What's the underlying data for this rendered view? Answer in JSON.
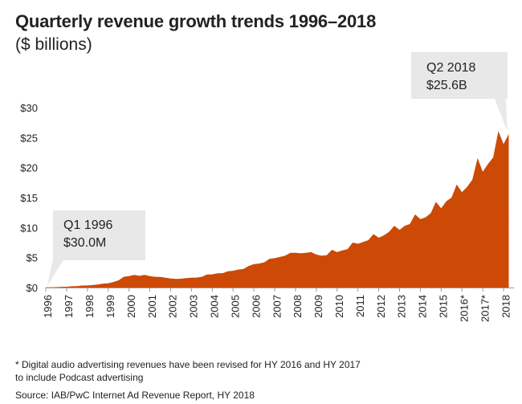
{
  "header": {
    "title": "Quarterly revenue growth trends 1996–2018",
    "subtitle": "($ billions)"
  },
  "annotations": {
    "start": {
      "line1": "Q1 1996",
      "line2": "$30.0M"
    },
    "end": {
      "line1": "Q2 2018",
      "line2": "$25.6B"
    }
  },
  "footer": {
    "footnote_line1": "* Digital audio advertising revenues have been revised for HY 2016 and HY 2017",
    "footnote_line2": "to include Podcast advertising",
    "source": "Source: IAB/PwC Internet Ad Revenue Report, HY 2018"
  },
  "colors": {
    "area": "#cc4a06",
    "callout_bg": "#e8e8e8",
    "axis": "#999999"
  },
  "chart_data": {
    "type": "area",
    "title": "Quarterly revenue growth trends 1996–2018",
    "subtitle": "($ billions)",
    "ylim": [
      0,
      30
    ],
    "yticks": [
      0,
      5,
      10,
      15,
      20,
      25,
      30
    ],
    "ytick_labels": [
      "$0",
      "$5",
      "$10",
      "$15",
      "$20",
      "$25",
      "$30"
    ],
    "xlim": [
      1996,
      2018.5
    ],
    "xtick_labels": [
      "1996",
      "1997",
      "1998",
      "1999",
      "2000",
      "2001",
      "2002",
      "2003",
      "2004",
      "2005",
      "2006",
      "2007",
      "2008",
      "2009",
      "2010",
      "2011",
      "2012",
      "2013",
      "2014",
      "2015",
      "2016*",
      "2017*",
      "2018"
    ],
    "series": [
      {
        "values": [
          {
            "x": 1996.0,
            "y": 0.03
          },
          {
            "x": 1996.25,
            "y": 0.05
          },
          {
            "x": 1996.5,
            "y": 0.07
          },
          {
            "x": 1996.75,
            "y": 0.12
          },
          {
            "x": 1997.0,
            "y": 0.13
          },
          {
            "x": 1997.25,
            "y": 0.21
          },
          {
            "x": 1997.5,
            "y": 0.23
          },
          {
            "x": 1997.75,
            "y": 0.34
          },
          {
            "x": 1998.0,
            "y": 0.35
          },
          {
            "x": 1998.25,
            "y": 0.42
          },
          {
            "x": 1998.5,
            "y": 0.49
          },
          {
            "x": 1998.75,
            "y": 0.66
          },
          {
            "x": 1999.0,
            "y": 0.69
          },
          {
            "x": 1999.25,
            "y": 0.93
          },
          {
            "x": 1999.5,
            "y": 1.2
          },
          {
            "x": 1999.75,
            "y": 1.8
          },
          {
            "x": 2000.0,
            "y": 1.9
          },
          {
            "x": 2000.25,
            "y": 2.1
          },
          {
            "x": 2000.5,
            "y": 1.95
          },
          {
            "x": 2000.75,
            "y": 2.1
          },
          {
            "x": 2001.0,
            "y": 1.9
          },
          {
            "x": 2001.25,
            "y": 1.8
          },
          {
            "x": 2001.5,
            "y": 1.77
          },
          {
            "x": 2001.75,
            "y": 1.64
          },
          {
            "x": 2002.0,
            "y": 1.52
          },
          {
            "x": 2002.25,
            "y": 1.45
          },
          {
            "x": 2002.5,
            "y": 1.47
          },
          {
            "x": 2002.75,
            "y": 1.58
          },
          {
            "x": 2003.0,
            "y": 1.63
          },
          {
            "x": 2003.25,
            "y": 1.66
          },
          {
            "x": 2003.5,
            "y": 1.8
          },
          {
            "x": 2003.75,
            "y": 2.18
          },
          {
            "x": 2004.0,
            "y": 2.2
          },
          {
            "x": 2004.25,
            "y": 2.37
          },
          {
            "x": 2004.5,
            "y": 2.4
          },
          {
            "x": 2004.75,
            "y": 2.7
          },
          {
            "x": 2005.0,
            "y": 2.8
          },
          {
            "x": 2005.25,
            "y": 3.0
          },
          {
            "x": 2005.5,
            "y": 3.1
          },
          {
            "x": 2005.75,
            "y": 3.6
          },
          {
            "x": 2006.0,
            "y": 3.9
          },
          {
            "x": 2006.25,
            "y": 4.0
          },
          {
            "x": 2006.5,
            "y": 4.2
          },
          {
            "x": 2006.75,
            "y": 4.8
          },
          {
            "x": 2007.0,
            "y": 4.9
          },
          {
            "x": 2007.25,
            "y": 5.1
          },
          {
            "x": 2007.5,
            "y": 5.3
          },
          {
            "x": 2007.75,
            "y": 5.8
          },
          {
            "x": 2008.0,
            "y": 5.8
          },
          {
            "x": 2008.25,
            "y": 5.7
          },
          {
            "x": 2008.5,
            "y": 5.8
          },
          {
            "x": 2008.75,
            "y": 5.9
          },
          {
            "x": 2009.0,
            "y": 5.5
          },
          {
            "x": 2009.25,
            "y": 5.3
          },
          {
            "x": 2009.5,
            "y": 5.4
          },
          {
            "x": 2009.75,
            "y": 6.3
          },
          {
            "x": 2010.0,
            "y": 5.9
          },
          {
            "x": 2010.25,
            "y": 6.2
          },
          {
            "x": 2010.5,
            "y": 6.4
          },
          {
            "x": 2010.75,
            "y": 7.5
          },
          {
            "x": 2011.0,
            "y": 7.3
          },
          {
            "x": 2011.25,
            "y": 7.6
          },
          {
            "x": 2011.5,
            "y": 7.9
          },
          {
            "x": 2011.75,
            "y": 8.9
          },
          {
            "x": 2012.0,
            "y": 8.3
          },
          {
            "x": 2012.25,
            "y": 8.7
          },
          {
            "x": 2012.5,
            "y": 9.3
          },
          {
            "x": 2012.75,
            "y": 10.3
          },
          {
            "x": 2013.0,
            "y": 9.6
          },
          {
            "x": 2013.25,
            "y": 10.3
          },
          {
            "x": 2013.5,
            "y": 10.6
          },
          {
            "x": 2013.75,
            "y": 12.2
          },
          {
            "x": 2014.0,
            "y": 11.4
          },
          {
            "x": 2014.25,
            "y": 11.7
          },
          {
            "x": 2014.5,
            "y": 12.4
          },
          {
            "x": 2014.75,
            "y": 14.3
          },
          {
            "x": 2015.0,
            "y": 13.2
          },
          {
            "x": 2015.25,
            "y": 14.4
          },
          {
            "x": 2015.5,
            "y": 15.0
          },
          {
            "x": 2015.75,
            "y": 17.2
          },
          {
            "x": 2016.0,
            "y": 15.9
          },
          {
            "x": 2016.25,
            "y": 16.8
          },
          {
            "x": 2016.5,
            "y": 18.0
          },
          {
            "x": 2016.75,
            "y": 21.6
          },
          {
            "x": 2017.0,
            "y": 19.3
          },
          {
            "x": 2017.25,
            "y": 20.6
          },
          {
            "x": 2017.5,
            "y": 21.7
          },
          {
            "x": 2017.75,
            "y": 26.1
          },
          {
            "x": 2018.0,
            "y": 23.9
          },
          {
            "x": 2018.25,
            "y": 25.6
          }
        ]
      }
    ],
    "grid": false
  }
}
